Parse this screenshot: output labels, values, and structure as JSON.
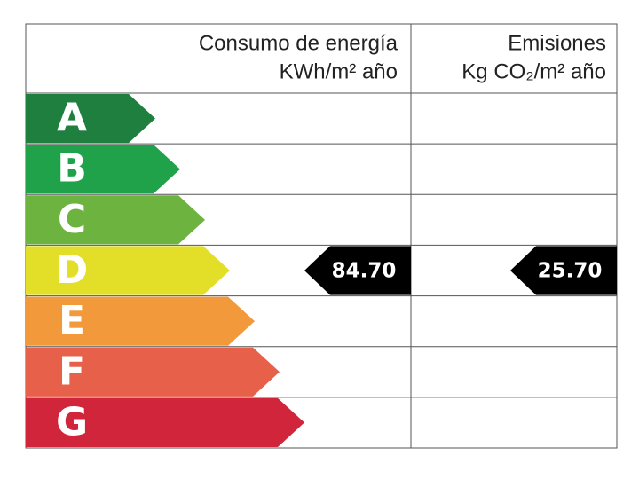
{
  "header": {
    "consumption_title": "Consumo de energía",
    "consumption_unit": "KWh/m² año",
    "emissions_title": "Emisiones",
    "emissions_unit": "Kg CO₂/m² año"
  },
  "ratings": [
    {
      "label": "A",
      "color": "#1f7f3e"
    },
    {
      "label": "B",
      "color": "#20a24a"
    },
    {
      "label": "C",
      "color": "#6db33f"
    },
    {
      "label": "D",
      "color": "#e3df29"
    },
    {
      "label": "E",
      "color": "#f29a3b"
    },
    {
      "label": "F",
      "color": "#e6604a"
    },
    {
      "label": "G",
      "color": "#d0253a"
    }
  ],
  "consumption": {
    "rating": "D",
    "value": "84.70"
  },
  "emissions": {
    "rating": "D",
    "value": "25.70"
  }
}
